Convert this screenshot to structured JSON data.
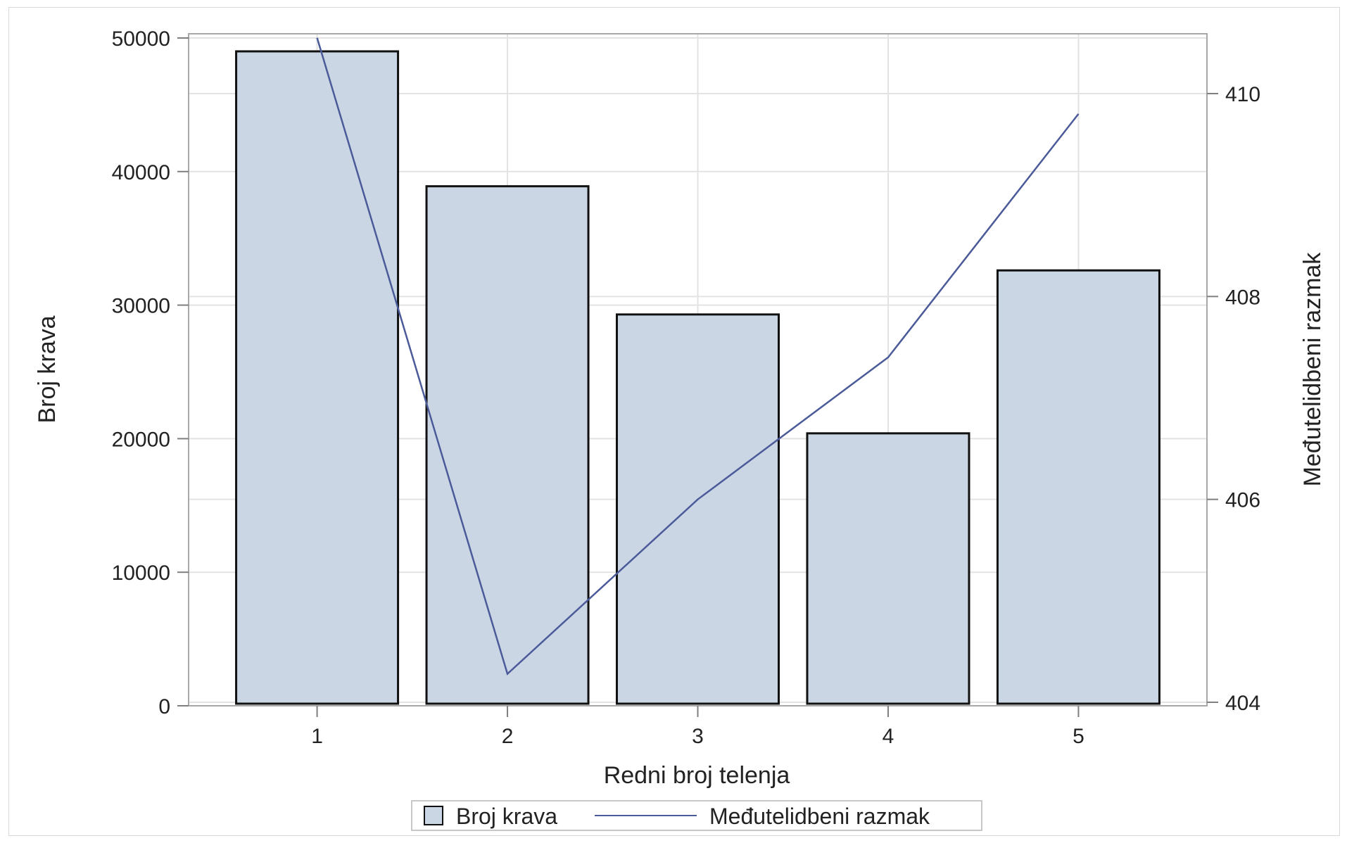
{
  "chart_data": {
    "type": "bar",
    "xlabel": "Redni broj telenja",
    "ylabel": "Broj krava",
    "y2label": "Međutelidbeni razmak",
    "categories": [
      "1",
      "2",
      "3",
      "4",
      "5"
    ],
    "ylim": [
      0,
      50000
    ],
    "yticks": [
      "0",
      "10000",
      "20000",
      "30000",
      "40000",
      "50000"
    ],
    "y2lim": [
      404,
      410
    ],
    "y2ticks": [
      "404",
      "406",
      "408",
      "410"
    ],
    "grid": true,
    "legend_position": "bottom",
    "series": [
      {
        "name": "Broj krava",
        "type": "bar",
        "axis": "left",
        "values": [
          49000,
          38900,
          29300,
          20400,
          32600
        ],
        "fill": "#cbd6e5",
        "stroke": "#111111"
      },
      {
        "name": "Međutelidbeni razmak",
        "type": "line",
        "axis": "right",
        "values": [
          410.55,
          404.28,
          406.0,
          407.4,
          409.8
        ],
        "stroke": "#4b5a99"
      }
    ]
  }
}
